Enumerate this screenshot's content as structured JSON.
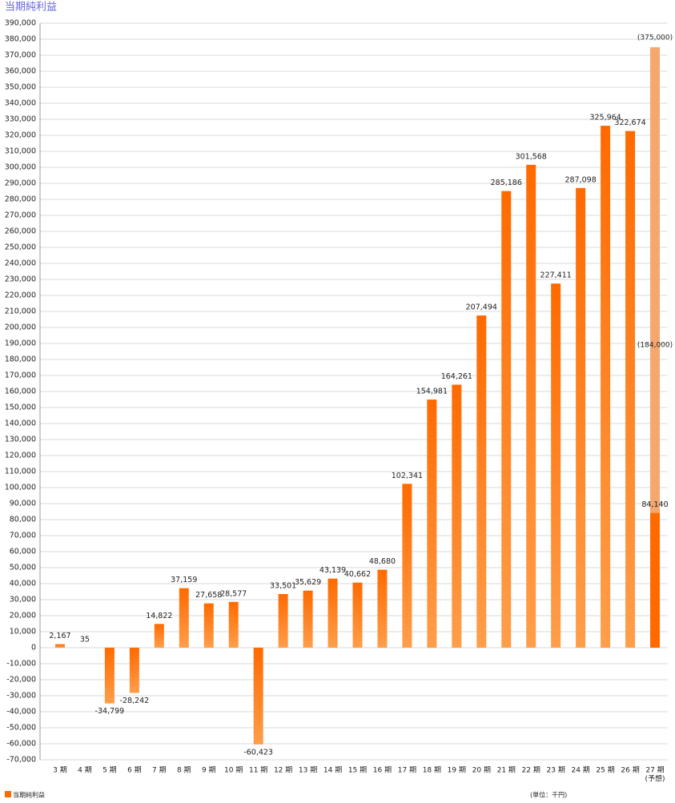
{
  "chart_data": {
    "type": "bar",
    "title": "当期純利益",
    "categories": [
      "3 期",
      "4 期",
      "5 期",
      "6 期",
      "7 期",
      "8 期",
      "9 期",
      "10 期",
      "11 期",
      "12 期",
      "13 期",
      "14 期",
      "15 期",
      "16 期",
      "17 期",
      "18 期",
      "19 期",
      "20 期",
      "21 期",
      "22 期",
      "23 期",
      "24 期",
      "25 期",
      "26 期",
      "27 期"
    ],
    "category_note": "(予想)",
    "series": [
      {
        "name": "当期純利益",
        "color": "#ff6a00",
        "values": [
          2167,
          35,
          -34799,
          -28242,
          14822,
          37159,
          27658,
          28577,
          -60423,
          33501,
          35629,
          43139,
          40662,
          48680,
          102341,
          154981,
          164261,
          207494,
          285186,
          301568,
          227411,
          287098,
          325964,
          322674,
          84140
        ],
        "value_labels": [
          "2,167",
          "35",
          "-34,799",
          "-28,242",
          "14,822",
          "37,159",
          "27,658",
          "28,577",
          "-60,423",
          "33,501",
          "35,629",
          "43,139",
          "40,662",
          "48,680",
          "102,341",
          "154,981",
          "164,261",
          "207,494",
          "285,186",
          "301,568",
          "227,411",
          "287,098",
          "325,964",
          "322,674",
          "84,140"
        ]
      },
      {
        "color": "#f4a870",
        "values": [
          null,
          null,
          null,
          null,
          null,
          null,
          null,
          null,
          null,
          null,
          null,
          null,
          null,
          null,
          null,
          null,
          null,
          null,
          null,
          null,
          null,
          null,
          null,
          null,
          375000
        ],
        "value_labels": [
          null,
          null,
          null,
          null,
          null,
          null,
          null,
          null,
          null,
          null,
          null,
          null,
          null,
          null,
          null,
          null,
          null,
          null,
          null,
          null,
          null,
          null,
          null,
          null,
          "(375,000)"
        ]
      }
    ],
    "interim_forecast": {
      "value": 184000,
      "label": "(184,000)"
    },
    "unit_note": "(単位：千円)",
    "ylim": [
      -70000,
      390000
    ],
    "yticks": [
      {
        "value": -70000,
        "label": "-70,000"
      },
      {
        "value": -60000,
        "label": "-60,000"
      },
      {
        "value": -50000,
        "label": "-50,000"
      },
      {
        "value": -40000,
        "label": "-40,000"
      },
      {
        "value": -30000,
        "label": "-30,000"
      },
      {
        "value": -20000,
        "label": "-20,000"
      },
      {
        "value": -10000,
        "label": "-10,000"
      },
      0,
      {
        "value": 10000,
        "label": "10,000"
      },
      {
        "value": 20000,
        "label": "20,000"
      },
      {
        "value": 30000,
        "label": "30,000"
      },
      {
        "value": 40000,
        "label": "40,000"
      },
      {
        "value": 50000,
        "label": "50,000"
      },
      {
        "value": 60000,
        "label": "60,000"
      },
      {
        "value": 70000,
        "label": "70,000"
      },
      {
        "value": 80000,
        "label": "80,000"
      },
      {
        "value": 90000,
        "label": "90,000"
      },
      {
        "value": 100000,
        "label": "100,000"
      },
      {
        "value": 110000,
        "label": "110,000"
      },
      {
        "value": 120000,
        "label": "120,000"
      },
      {
        "value": 130000,
        "label": "130,000"
      },
      {
        "value": 140000,
        "label": "140,000"
      },
      {
        "value": 150000,
        "label": "150,000"
      },
      {
        "value": 160000,
        "label": "160,000"
      },
      {
        "value": 170000,
        "label": "170,000"
      },
      {
        "value": 180000,
        "label": "180,000"
      },
      {
        "value": 190000,
        "label": "190,000"
      },
      {
        "value": 200000,
        "label": "200,000"
      },
      {
        "value": 210000,
        "label": "210,000"
      },
      {
        "value": 220000,
        "label": "220,000"
      },
      {
        "value": 230000,
        "label": "230,000"
      },
      {
        "value": 240000,
        "label": "240,000"
      },
      {
        "value": 250000,
        "label": "250,000"
      },
      {
        "value": 260000,
        "label": "260,000"
      },
      {
        "value": 270000,
        "label": "270,000"
      },
      {
        "value": 280000,
        "label": "280,000"
      },
      {
        "value": 290000,
        "label": "290,000"
      },
      {
        "value": 300000,
        "label": "300,000"
      },
      {
        "value": 310000,
        "label": "310,000"
      },
      {
        "value": 320000,
        "label": "320,000"
      },
      {
        "value": 330000,
        "label": "330,000"
      },
      {
        "value": 340000,
        "label": "340,000"
      },
      {
        "value": 350000,
        "label": "350,000"
      },
      {
        "value": 360000,
        "label": "360,000"
      },
      {
        "value": 370000,
        "label": "370,000"
      },
      {
        "value": 380000,
        "label": "380,000"
      },
      {
        "value": 390000,
        "label": "390,000"
      }
    ],
    "grid": true
  }
}
